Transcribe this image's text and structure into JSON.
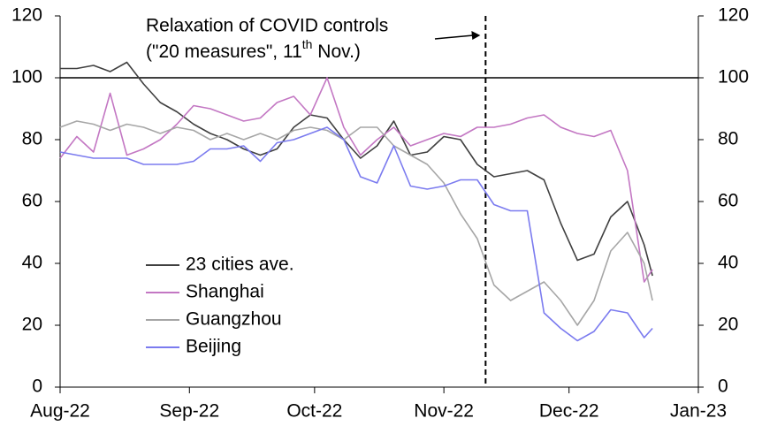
{
  "chart_data": {
    "type": "line",
    "x": [
      0,
      4,
      8,
      12,
      16,
      20,
      24,
      28,
      32,
      36,
      40,
      44,
      48,
      52,
      56,
      60,
      64,
      68,
      72,
      76,
      80,
      84,
      88,
      92,
      96,
      100,
      104,
      108,
      112,
      116,
      120,
      124,
      128,
      132,
      136,
      140,
      142
    ],
    "series": [
      {
        "name": "23 cities ave.",
        "color": "#404040",
        "values": [
          103,
          103,
          104,
          102,
          105,
          98,
          92,
          89,
          85,
          82,
          80,
          77,
          75,
          77,
          84,
          88,
          87,
          80,
          74,
          78,
          86,
          75,
          76,
          81,
          80,
          72,
          68,
          69,
          70,
          67,
          53,
          41,
          43,
          55,
          60,
          46,
          36
        ]
      },
      {
        "name": "Shanghai",
        "color": "#c377c3",
        "values": [
          74,
          81,
          76,
          95,
          75,
          77,
          80,
          85,
          91,
          90,
          88,
          86,
          87,
          92,
          94,
          88,
          100,
          84,
          75,
          80,
          84,
          78,
          80,
          82,
          81,
          84,
          84,
          85,
          87,
          88,
          84,
          82,
          81,
          83,
          70,
          34,
          38
        ]
      },
      {
        "name": "Guangzhou",
        "color": "#a6a6a6",
        "values": [
          84,
          86,
          85,
          83,
          85,
          84,
          82,
          84,
          83,
          80,
          82,
          80,
          82,
          80,
          83,
          84,
          83,
          80,
          84,
          84,
          78,
          75,
          72,
          66,
          56,
          48,
          33,
          28,
          31,
          34,
          28,
          20,
          28,
          44,
          50,
          40,
          28
        ]
      },
      {
        "name": "Beijing",
        "color": "#7b7bef",
        "values": [
          76,
          75,
          74,
          74,
          74,
          72,
          72,
          72,
          73,
          77,
          77,
          78,
          73,
          79,
          80,
          82,
          84,
          80,
          68,
          66,
          78,
          65,
          64,
          65,
          67,
          67,
          59,
          57,
          57,
          24,
          19,
          15,
          18,
          25,
          24,
          16,
          19
        ]
      }
    ],
    "xlim": [
      0,
      153
    ],
    "xticks": [
      {
        "value": 0,
        "label": "Aug-22"
      },
      {
        "value": 31,
        "label": "Sep-22"
      },
      {
        "value": 61,
        "label": "Oct-22"
      },
      {
        "value": 92,
        "label": "Nov-22"
      },
      {
        "value": 122,
        "label": "Dec-22"
      },
      {
        "value": 153,
        "label": "Jan-23"
      }
    ],
    "ylim": [
      0,
      120
    ],
    "yticks": [
      0,
      20,
      40,
      60,
      80,
      100,
      120
    ],
    "y2lim": [
      0,
      120
    ],
    "y2ticks": [
      0,
      20,
      40,
      60,
      80,
      100,
      120
    ],
    "reference_y": 100,
    "annotation": {
      "line1": "Relaxation of COVID controls",
      "line2_before": "(\"20 measures\", 11",
      "line2_sup": "th",
      "line2_after": " Nov.)",
      "marker_x": 102
    },
    "grid": false
  }
}
